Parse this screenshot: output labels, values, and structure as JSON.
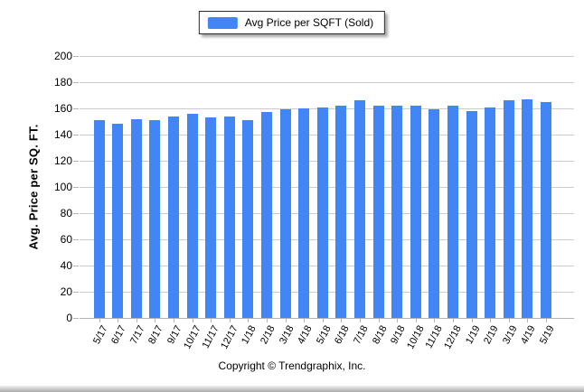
{
  "legend": {
    "label": "Avg Price per SQFT (Sold)",
    "swatch_color": "#4285f4"
  },
  "footer": {
    "copyright": "Copyright © Trendgraphix, Inc."
  },
  "chart_data": {
    "type": "bar",
    "title": "",
    "xlabel": "",
    "ylabel": "Avg. Price per SQ. FT.",
    "ylim": [
      0,
      200
    ],
    "ytick_step": 20,
    "grid": true,
    "legend_position": "top-center",
    "bar_color": "#4285f4",
    "categories": [
      "5/17",
      "6/17",
      "7/17",
      "8/17",
      "9/17",
      "10/17",
      "11/17",
      "12/17",
      "1/18",
      "2/18",
      "3/18",
      "4/18",
      "5/18",
      "6/18",
      "7/18",
      "8/18",
      "9/18",
      "10/18",
      "11/18",
      "12/18",
      "1/19",
      "2/19",
      "3/19",
      "4/19",
      "5/19"
    ],
    "values": [
      151,
      148,
      152,
      151,
      154,
      156,
      153,
      154,
      151,
      157,
      159,
      160,
      161,
      162,
      166,
      162,
      162,
      162,
      159,
      162,
      158,
      161,
      166,
      167,
      165
    ]
  }
}
